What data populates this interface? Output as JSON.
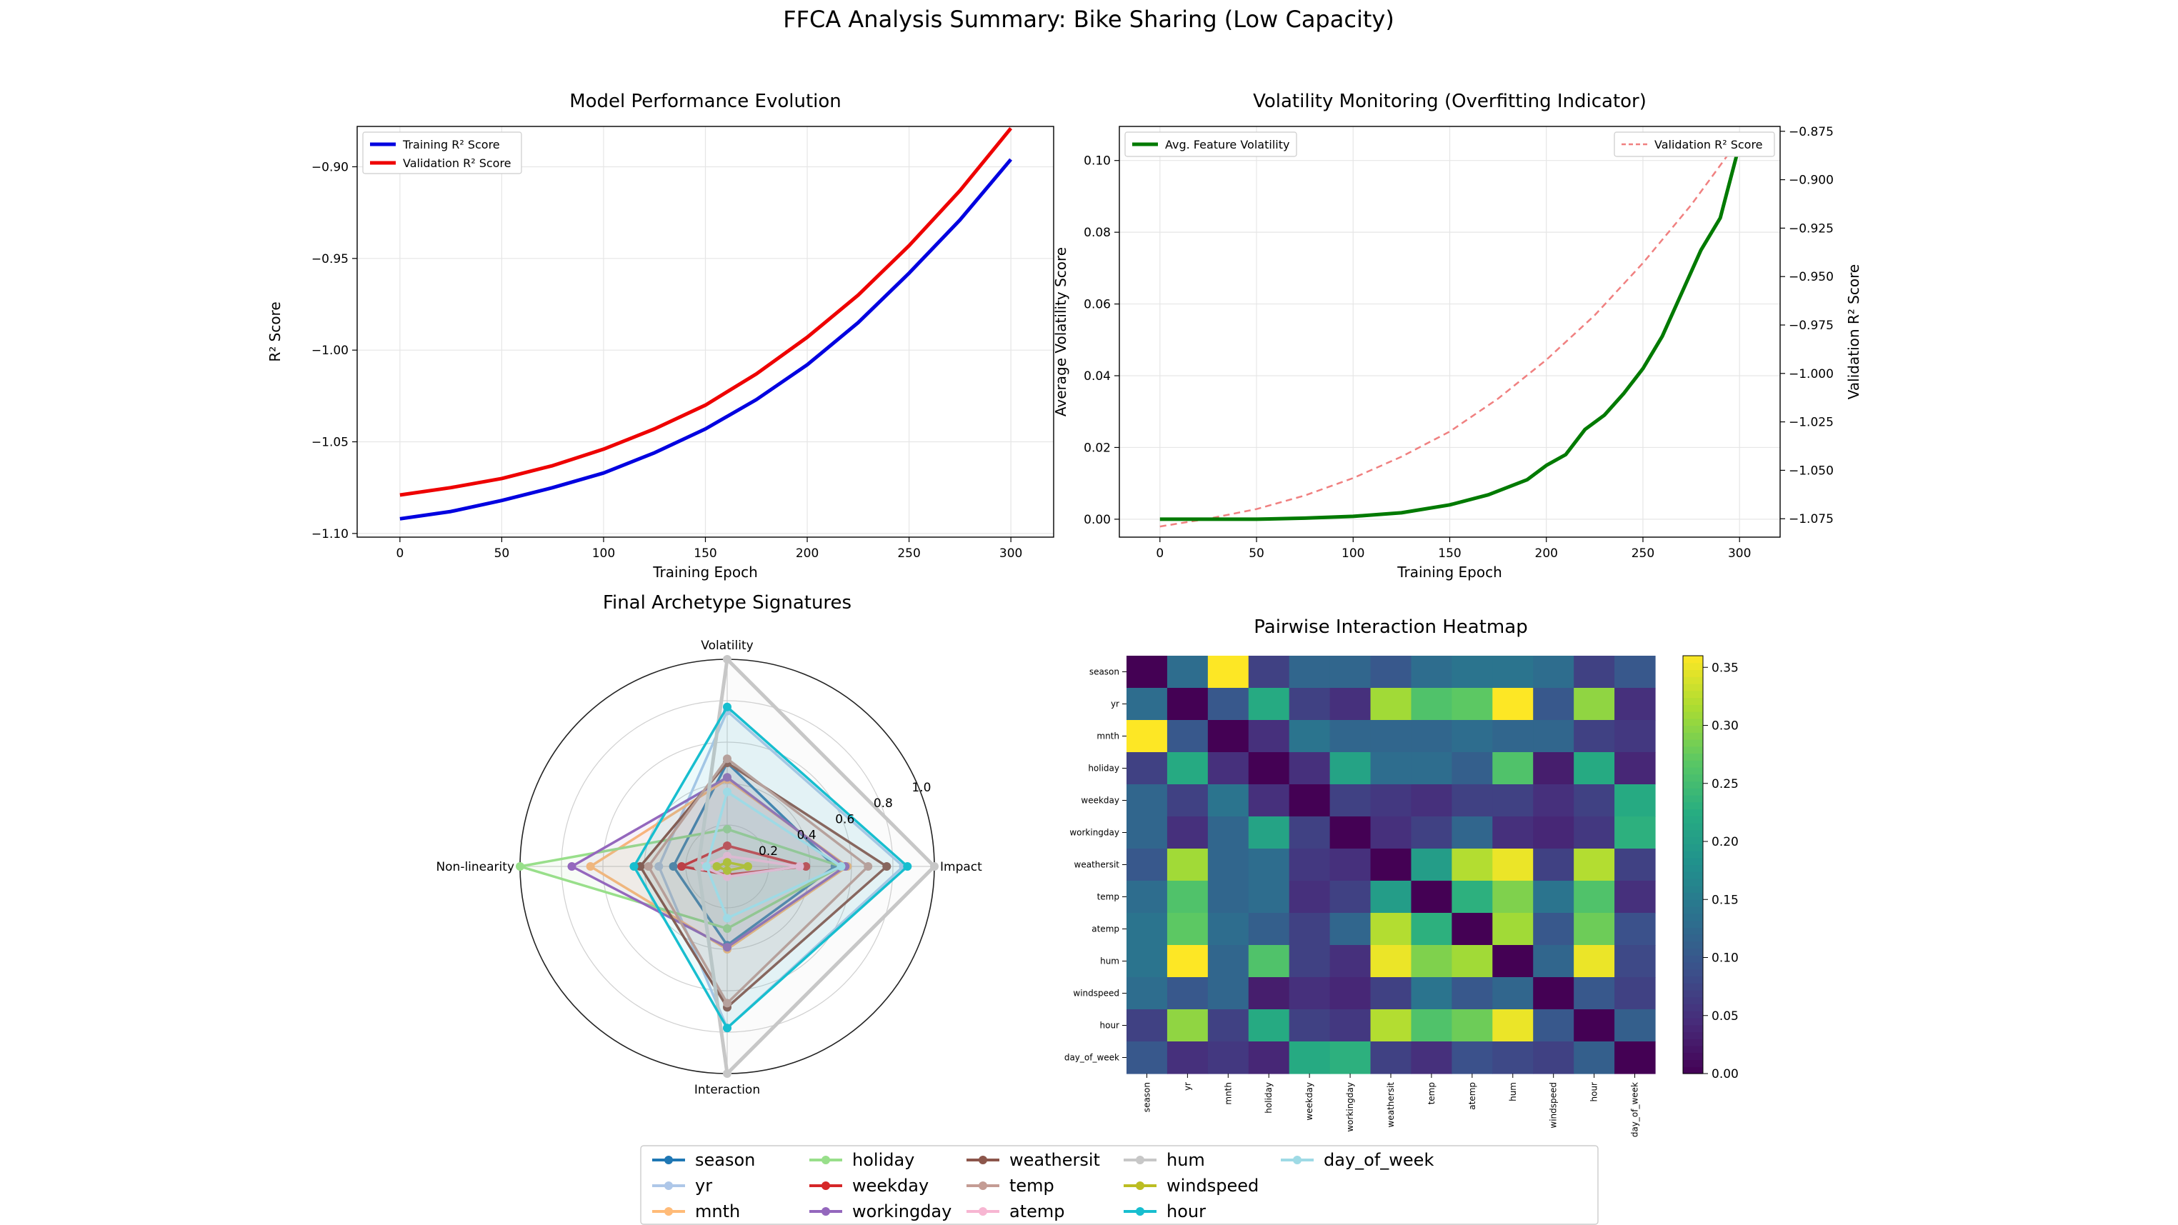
{
  "figure": {
    "title": "FFCA Analysis Summary: Bike Sharing (Low Capacity)"
  },
  "chart_data": [
    {
      "type": "line",
      "id": "perf",
      "title": "Model Performance Evolution",
      "xlabel": "Training Epoch",
      "ylabel": "R² Score",
      "xlim": [
        -21,
        321
      ],
      "ylim": [
        -1.102,
        -0.878
      ],
      "xticks": [
        0,
        50,
        100,
        150,
        200,
        250,
        300
      ],
      "yticks": [
        -1.1,
        -1.05,
        -1.0,
        -0.95,
        -0.9
      ],
      "ytick_labels": [
        "−1.10",
        "−1.05",
        "−1.00",
        "−0.95",
        "−0.90"
      ],
      "legend_position": "upper left",
      "grid": true,
      "series": [
        {
          "name": "Training R² Score",
          "color": "#0000e0",
          "x": [
            0,
            25,
            50,
            75,
            100,
            125,
            150,
            175,
            200,
            225,
            250,
            275,
            300
          ],
          "y": [
            -1.092,
            -1.088,
            -1.082,
            -1.075,
            -1.067,
            -1.056,
            -1.043,
            -1.027,
            -1.008,
            -0.985,
            -0.958,
            -0.929,
            -0.896
          ]
        },
        {
          "name": "Validation R² Score",
          "color": "#ee0000",
          "x": [
            0,
            25,
            50,
            75,
            100,
            125,
            150,
            175,
            200,
            225,
            250,
            275,
            300
          ],
          "y": [
            -1.079,
            -1.075,
            -1.07,
            -1.063,
            -1.054,
            -1.043,
            -1.03,
            -1.013,
            -0.993,
            -0.97,
            -0.943,
            -0.913,
            -0.879
          ]
        }
      ]
    },
    {
      "type": "line",
      "id": "vol",
      "title": "Volatility Monitoring (Overfitting Indicator)",
      "xlabel": "Training Epoch",
      "ylabel": "Average Volatility Score",
      "y2label": "Validation R² Score",
      "xlim": [
        -21,
        321
      ],
      "ylim": [
        -0.005,
        0.1095
      ],
      "y2lim": [
        -1.0845,
        -0.8725
      ],
      "xticks": [
        0,
        50,
        100,
        150,
        200,
        250,
        300
      ],
      "yticks": [
        0.0,
        0.02,
        0.04,
        0.06,
        0.08,
        0.1
      ],
      "ytick_labels": [
        "0.00",
        "0.02",
        "0.04",
        "0.06",
        "0.08",
        "0.10"
      ],
      "y2ticks": [
        -1.075,
        -1.05,
        -1.025,
        -1.0,
        -0.975,
        -0.95,
        -0.925,
        -0.9,
        -0.875
      ],
      "y2tick_labels": [
        "−1.075",
        "−1.050",
        "−1.025",
        "−1.000",
        "−0.975",
        "−0.950",
        "−0.925",
        "−0.900",
        "−0.875"
      ],
      "grid": true,
      "series": [
        {
          "name": "Avg. Feature Volatility",
          "color": "#007a00",
          "axis": "left",
          "legend_position": "upper left",
          "x": [
            0,
            25,
            50,
            75,
            100,
            125,
            150,
            170,
            190,
            200,
            210,
            220,
            230,
            240,
            250,
            260,
            270,
            280,
            290,
            300
          ],
          "y": [
            0,
            0,
            0,
            0.0003,
            0.0008,
            0.0018,
            0.004,
            0.0068,
            0.011,
            0.015,
            0.018,
            0.025,
            0.029,
            0.035,
            0.042,
            0.051,
            0.063,
            0.075,
            0.084,
            0.1045
          ]
        },
        {
          "name": "Validation R² Score",
          "color": "#f08080",
          "axis": "right",
          "dashed": true,
          "legend_position": "upper right",
          "x": [
            0,
            25,
            50,
            75,
            100,
            125,
            150,
            175,
            200,
            225,
            250,
            275,
            300
          ],
          "y": [
            -1.079,
            -1.075,
            -1.07,
            -1.063,
            -1.054,
            -1.043,
            -1.03,
            -1.013,
            -0.993,
            -0.97,
            -0.943,
            -0.913,
            -0.879
          ]
        }
      ]
    },
    {
      "type": "radar",
      "id": "radar",
      "title": "Final Archetype Signatures",
      "axes": [
        "Volatility",
        "Impact",
        "Interaction",
        "Non-linearity"
      ],
      "rlim": [
        0,
        1
      ],
      "rticks": [
        0.2,
        0.4,
        0.6,
        0.8,
        1.0
      ],
      "rtick_labels": [
        "0.2",
        "0.4",
        "0.6",
        "0.8",
        "1.0"
      ],
      "series": [
        {
          "name": "season",
          "color": "#1f77b4",
          "values": [
            0.5,
            0.52,
            0.38,
            0.26
          ]
        },
        {
          "name": "yr",
          "color": "#aec7e8",
          "values": [
            0.75,
            0.85,
            0.78,
            0.33
          ]
        },
        {
          "name": "mnth",
          "color": "#ffbb78",
          "values": [
            0.42,
            0.58,
            0.4,
            0.66
          ]
        },
        {
          "name": "holiday",
          "color": "#98df8a",
          "values": [
            0.18,
            0.55,
            0.3,
            1.0
          ]
        },
        {
          "name": "weekday",
          "color": "#d62728",
          "values": [
            0.1,
            0.38,
            0.04,
            0.22
          ]
        },
        {
          "name": "workingday",
          "color": "#9467bd",
          "values": [
            0.43,
            0.57,
            0.39,
            0.75
          ]
        },
        {
          "name": "weathersit",
          "color": "#8c564b",
          "values": [
            0.5,
            0.77,
            0.68,
            0.42
          ]
        },
        {
          "name": "temp",
          "color": "#c49c94",
          "values": [
            0.52,
            0.68,
            0.66,
            0.38
          ]
        },
        {
          "name": "atemp",
          "color": "#f7b6d2",
          "values": [
            0.05,
            0.35,
            0.05,
            0.12
          ]
        },
        {
          "name": "hum",
          "color": "#c7c7c7",
          "values": [
            1.0,
            1.0,
            1.0,
            0.14
          ]
        },
        {
          "name": "windspeed",
          "color": "#bcbd22",
          "values": [
            0.02,
            0.1,
            0.02,
            0.05
          ]
        },
        {
          "name": "hour",
          "color": "#17becf",
          "values": [
            0.77,
            0.87,
            0.78,
            0.45
          ]
        },
        {
          "name": "day_of_week",
          "color": "#9edae5",
          "values": [
            0.36,
            0.55,
            0.25,
            0.1
          ]
        }
      ]
    },
    {
      "type": "heatmap",
      "id": "heat",
      "title": "Pairwise Interaction Heatmap",
      "labels": [
        "season",
        "yr",
        "mnth",
        "holiday",
        "weekday",
        "workingday",
        "weathersit",
        "temp",
        "atemp",
        "hum",
        "windspeed",
        "hour",
        "day_of_week"
      ],
      "vmin": 0,
      "vmax": 0.36,
      "colorbar_ticks": [
        0.0,
        0.05,
        0.1,
        0.15,
        0.2,
        0.25,
        0.3,
        0.35
      ],
      "colorbar_tick_labels": [
        "0.00",
        "0.05",
        "0.10",
        "0.15",
        "0.20",
        "0.25",
        "0.30",
        "0.35"
      ],
      "matrix": [
        [
          0.0,
          0.13,
          0.36,
          0.07,
          0.12,
          0.12,
          0.1,
          0.13,
          0.14,
          0.14,
          0.13,
          0.07,
          0.1
        ],
        [
          0.13,
          0.0,
          0.1,
          0.22,
          0.07,
          0.05,
          0.31,
          0.26,
          0.27,
          0.36,
          0.1,
          0.3,
          0.05
        ],
        [
          0.36,
          0.1,
          0.0,
          0.05,
          0.14,
          0.12,
          0.12,
          0.12,
          0.13,
          0.12,
          0.12,
          0.07,
          0.06
        ],
        [
          0.07,
          0.22,
          0.05,
          0.0,
          0.05,
          0.21,
          0.13,
          0.13,
          0.11,
          0.26,
          0.03,
          0.22,
          0.04
        ],
        [
          0.12,
          0.07,
          0.14,
          0.05,
          0.0,
          0.07,
          0.06,
          0.05,
          0.07,
          0.07,
          0.05,
          0.07,
          0.22
        ],
        [
          0.12,
          0.05,
          0.12,
          0.21,
          0.07,
          0.0,
          0.05,
          0.07,
          0.12,
          0.05,
          0.04,
          0.06,
          0.23
        ],
        [
          0.1,
          0.31,
          0.12,
          0.13,
          0.06,
          0.05,
          0.0,
          0.2,
          0.32,
          0.35,
          0.07,
          0.32,
          0.07
        ],
        [
          0.13,
          0.26,
          0.12,
          0.13,
          0.05,
          0.07,
          0.2,
          0.0,
          0.23,
          0.29,
          0.14,
          0.26,
          0.05
        ],
        [
          0.14,
          0.27,
          0.13,
          0.11,
          0.07,
          0.12,
          0.32,
          0.23,
          0.0,
          0.31,
          0.1,
          0.28,
          0.09
        ],
        [
          0.14,
          0.36,
          0.12,
          0.26,
          0.07,
          0.05,
          0.35,
          0.29,
          0.31,
          0.0,
          0.12,
          0.35,
          0.08
        ],
        [
          0.13,
          0.1,
          0.12,
          0.03,
          0.05,
          0.04,
          0.07,
          0.14,
          0.1,
          0.12,
          0.0,
          0.1,
          0.07
        ],
        [
          0.07,
          0.3,
          0.07,
          0.22,
          0.07,
          0.06,
          0.32,
          0.26,
          0.28,
          0.35,
          0.1,
          0.0,
          0.11
        ],
        [
          0.1,
          0.05,
          0.06,
          0.04,
          0.22,
          0.23,
          0.07,
          0.05,
          0.09,
          0.08,
          0.07,
          0.11,
          0.0
        ]
      ]
    }
  ]
}
